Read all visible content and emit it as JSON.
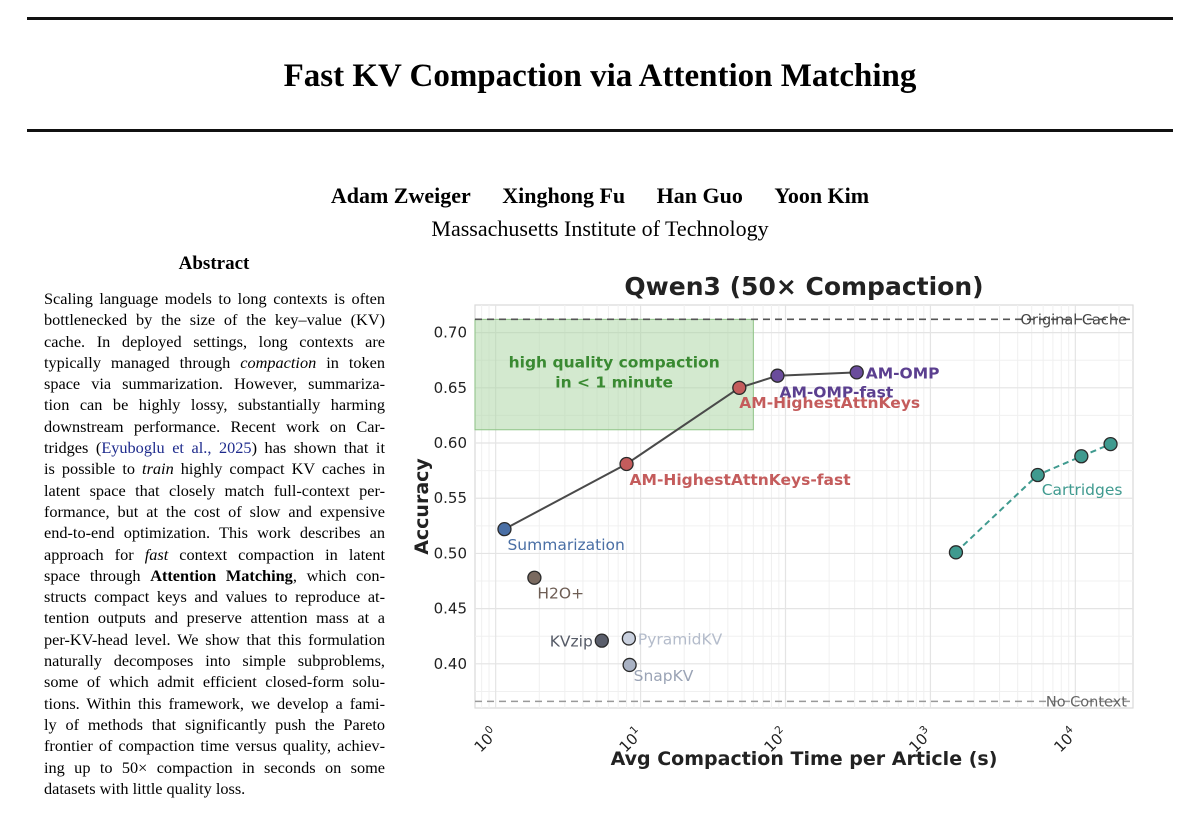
{
  "paper": {
    "title": "Fast KV Compaction via Attention Matching",
    "authors": [
      "Adam Zweiger",
      "Xinghong Fu",
      "Han Guo",
      "Yoon Kim"
    ],
    "affiliation": "Massachusetts Institute of Technology",
    "abstract_heading": "Abstract",
    "abstract_lines": [
      [
        {
          "t": "Scaling language models to long contexts is often"
        }
      ],
      [
        {
          "t": "bottlenecked by the size of the key–value (KV)"
        }
      ],
      [
        {
          "t": "cache.  In deployed settings, long contexts are"
        }
      ],
      [
        {
          "t": "typically managed through "
        },
        {
          "t": "compaction",
          "s": "i"
        },
        {
          "t": " in token"
        }
      ],
      [
        {
          "t": "space via summarization. However, summariza-"
        }
      ],
      [
        {
          "t": "tion can be highly lossy, substantially harming"
        }
      ],
      [
        {
          "t": "downstream performance. Recent work on Car-"
        }
      ],
      [
        {
          "t": "tridges ("
        },
        {
          "t": "Eyuboglu et al., 2025",
          "s": "c"
        },
        {
          "t": ") has shown that it"
        }
      ],
      [
        {
          "t": "is possible to "
        },
        {
          "t": "train",
          "s": "i"
        },
        {
          "t": " highly compact KV caches in"
        }
      ],
      [
        {
          "t": "latent space that closely match full-context per-"
        }
      ],
      [
        {
          "t": "formance, but at the cost of slow and expensive"
        }
      ],
      [
        {
          "t": "end-to-end optimization. This work describes an"
        }
      ],
      [
        {
          "t": "approach for "
        },
        {
          "t": "fast",
          "s": "i"
        },
        {
          "t": " context compaction in latent"
        }
      ],
      [
        {
          "t": "space through "
        },
        {
          "t": "Attention Matching",
          "s": "b"
        },
        {
          "t": ", which con-"
        }
      ],
      [
        {
          "t": "structs compact keys and values to reproduce at-"
        }
      ],
      [
        {
          "t": "tention outputs and preserve attention mass at a"
        }
      ],
      [
        {
          "t": "per-KV-head level. We show that this formulation"
        }
      ],
      [
        {
          "t": "naturally decomposes into simple subproblems,"
        }
      ],
      [
        {
          "t": "some of which admit efficient closed-form solu-"
        }
      ],
      [
        {
          "t": "tions. Within this framework, we develop a fami-"
        }
      ],
      [
        {
          "t": "ly of methods that significantly push the Pareto"
        }
      ],
      [
        {
          "t": "frontier of compaction time versus quality, achiev-"
        }
      ],
      [
        {
          "t": "ing up to 50× compaction in seconds on some"
        }
      ],
      [
        {
          "t": "datasets with little quality loss."
        }
      ]
    ]
  },
  "chart_data": {
    "type": "scatter",
    "title": "Qwen3 (50× Compaction)",
    "xlabel": "Avg Compaction Time per Article (s)",
    "ylabel": "Accuracy",
    "x_scale": "log",
    "xlim": [
      0.72,
      25000
    ],
    "ylim": [
      0.36,
      0.725
    ],
    "x_ticks": [
      {
        "value": 1,
        "base": "10",
        "exp": "0"
      },
      {
        "value": 10,
        "base": "10",
        "exp": "1"
      },
      {
        "value": 100,
        "base": "10",
        "exp": "2"
      },
      {
        "value": 1000,
        "base": "10",
        "exp": "3"
      },
      {
        "value": 10000,
        "base": "10",
        "exp": "4"
      }
    ],
    "y_ticks": [
      {
        "value": 0.4,
        "label": "0.40"
      },
      {
        "value": 0.45,
        "label": "0.45"
      },
      {
        "value": 0.5,
        "label": "0.50"
      },
      {
        "value": 0.55,
        "label": "0.55"
      },
      {
        "value": 0.6,
        "label": "0.60"
      },
      {
        "value": 0.65,
        "label": "0.65"
      },
      {
        "value": 0.7,
        "label": "0.70"
      }
    ],
    "grid": true,
    "reference_lines": [
      {
        "name": "original-cache",
        "label": "Original Cache",
        "y": 0.712,
        "color": "#555555"
      },
      {
        "name": "no-context",
        "label": "No Context",
        "y": 0.366,
        "color": "#999999"
      }
    ],
    "highlight_region": {
      "label_lines": [
        "high quality compaction",
        "in < 1 minute"
      ],
      "x_range": [
        0.72,
        60
      ],
      "y_range": [
        0.612,
        0.712
      ],
      "fill": "#a8d3a0",
      "text_color": "#3a8a32"
    },
    "series": [
      {
        "name": "AM frontier",
        "line": "solid",
        "line_color": "#4a4a4a",
        "points": [
          {
            "label": "Summarization",
            "x": 1.15,
            "y": 0.522,
            "color": "#4a6fa5",
            "label_color": "#4a6fa5",
            "bold": false,
            "anchor": "below-right"
          },
          {
            "label": "AM-HighestAttnKeys-fast",
            "x": 8.0,
            "y": 0.581,
            "color": "#c45c5c",
            "label_color": "#c45c5c",
            "bold": true,
            "anchor": "below-right"
          },
          {
            "label": "AM-HighestAttnKeys",
            "x": 48,
            "y": 0.65,
            "color": "#c45c5c",
            "label_color": "#c45c5c",
            "bold": true,
            "anchor": "below"
          },
          {
            "label": "AM-OMP-fast",
            "x": 88,
            "y": 0.661,
            "color": "#6a4c9c",
            "label_color": "#5b3f8f",
            "bold": true,
            "anchor": "below"
          },
          {
            "label": "AM-OMP",
            "x": 310,
            "y": 0.664,
            "color": "#6a4c9c",
            "label_color": "#5b3f8f",
            "bold": true,
            "anchor": "right"
          }
        ]
      },
      {
        "name": "Cartridges",
        "line": "dashed",
        "line_color": "#3f9a8f",
        "points": [
          {
            "label": "",
            "x": 1500,
            "y": 0.501,
            "color": "#3f9a8f"
          },
          {
            "label": "Cartridges",
            "x": 5500,
            "y": 0.571,
            "color": "#3f9a8f",
            "label_color": "#3f9a8f",
            "bold": false,
            "anchor": "below-right"
          },
          {
            "label": "",
            "x": 11000,
            "y": 0.588,
            "color": "#3f9a8f"
          },
          {
            "label": "",
            "x": 17500,
            "y": 0.599,
            "color": "#3f9a8f"
          }
        ]
      },
      {
        "name": "Baselines",
        "line": "none",
        "points": [
          {
            "label": "H2O+",
            "x": 1.85,
            "y": 0.478,
            "color": "#7a6a60",
            "label_color": "#6e5e55",
            "bold": false,
            "anchor": "below-right"
          },
          {
            "label": "KVzip",
            "x": 5.4,
            "y": 0.421,
            "color": "#5a5e6b",
            "label_color": "#555a66",
            "bold": false,
            "anchor": "left"
          },
          {
            "label": "PyramidKV",
            "x": 8.3,
            "y": 0.423,
            "color": "#c9d0de",
            "label_color": "#b4bccb",
            "bold": false,
            "anchor": "right"
          },
          {
            "label": "SnapKV",
            "x": 8.4,
            "y": 0.399,
            "color": "#a9b2c4",
            "label_color": "#9aa3b5",
            "bold": false,
            "anchor": "below-right"
          }
        ]
      }
    ]
  }
}
